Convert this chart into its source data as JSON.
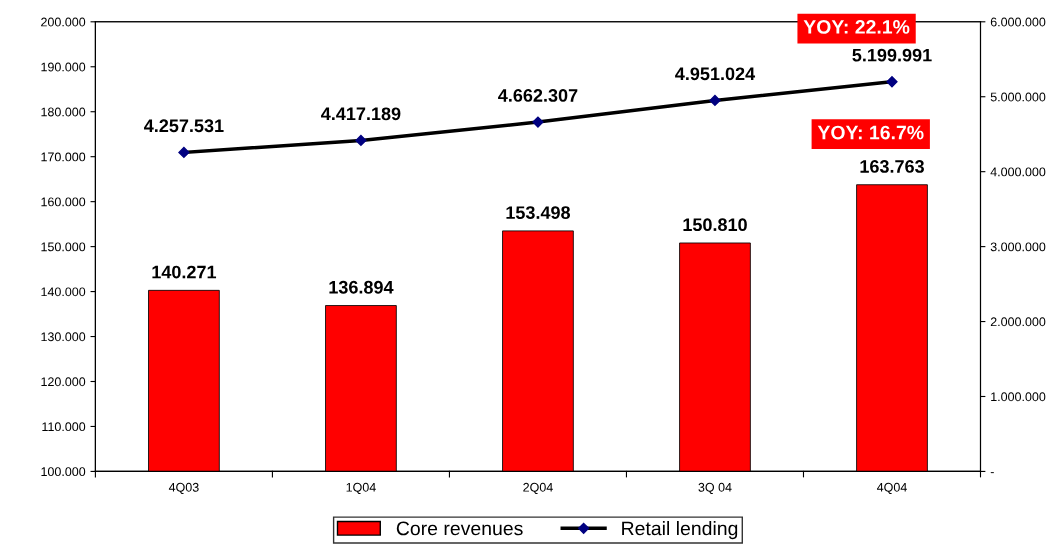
{
  "chart_data": {
    "type": "bar",
    "categories": [
      "4Q03",
      "1Q04",
      "2Q04",
      "3Q 04",
      "4Q04"
    ],
    "series": [
      {
        "name": "Core revenues",
        "color": "#ff0000",
        "values": [
          140271,
          136894,
          153498,
          150810,
          163763
        ],
        "value_labels": [
          "140.271",
          "136.894",
          "153.498",
          "150.810",
          "163.763"
        ]
      },
      {
        "name": "Retail lending",
        "type": "line",
        "axis": "y2",
        "color": "#000000",
        "marker": "diamond",
        "values": [
          4257531,
          4417189,
          4662307,
          4951024,
          5199991
        ],
        "value_labels": [
          "4.257.531",
          "4.417.189",
          "4.662.307",
          "4.951.024",
          "5.199.991"
        ]
      }
    ],
    "ylim": [
      100000,
      200000
    ],
    "yticks": [
      {
        "value": 100000,
        "label": "100.000"
      },
      {
        "value": 110000,
        "label": "110.000"
      },
      {
        "value": 120000,
        "label": "120.000"
      },
      {
        "value": 130000,
        "label": "130.000"
      },
      {
        "value": 140000,
        "label": "140.000"
      },
      {
        "value": 150000,
        "label": "150.000"
      },
      {
        "value": 160000,
        "label": "160.000"
      },
      {
        "value": 170000,
        "label": "170.000"
      },
      {
        "value": 180000,
        "label": "180.000"
      },
      {
        "value": 190000,
        "label": "190.000"
      },
      {
        "value": 200000,
        "label": "200.000"
      }
    ],
    "y2lim": [
      0,
      6000000
    ],
    "y2ticks": [
      {
        "value": 0,
        "label": "-"
      },
      {
        "value": 1000000,
        "label": "1.000.000"
      },
      {
        "value": 2000000,
        "label": "2.000.000"
      },
      {
        "value": 3000000,
        "label": "3.000.000"
      },
      {
        "value": 4000000,
        "label": "4.000.000"
      },
      {
        "value": 5000000,
        "label": "5.000.000"
      },
      {
        "value": 6000000,
        "label": "6.000.000"
      }
    ],
    "annotations": [
      "YOY: 22.1%",
      "YOY: 16.7%"
    ],
    "grid": false,
    "legend": "bottom"
  }
}
